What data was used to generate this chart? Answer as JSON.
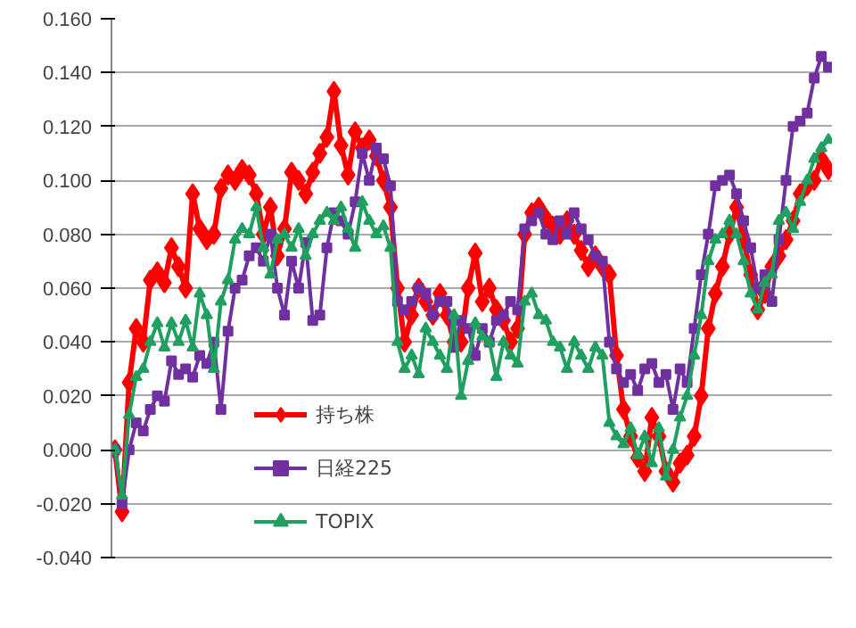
{
  "chart_data": {
    "type": "line",
    "categories": [
      null,
      null,
      null,
      null,
      null,
      null,
      null,
      null,
      null,
      null,
      null,
      null,
      null,
      null,
      null,
      null,
      null,
      null,
      null,
      null,
      null,
      null,
      null,
      null,
      null,
      null,
      null,
      null,
      null,
      null,
      null,
      null,
      null,
      null,
      null,
      null,
      null,
      null,
      null,
      null,
      null,
      null,
      null,
      null,
      null,
      null,
      null,
      null,
      null,
      null,
      null,
      null,
      null,
      null,
      null,
      null,
      null,
      null,
      null,
      null,
      null,
      null,
      null,
      null,
      null,
      null,
      null,
      null,
      null,
      null,
      null,
      null,
      null,
      null,
      null,
      null,
      null,
      null,
      null,
      null,
      null,
      null,
      null,
      null,
      null,
      null,
      null,
      null,
      null,
      null,
      null,
      null,
      null,
      null,
      null,
      null,
      null,
      null,
      null,
      null,
      null,
      null
    ],
    "series": [
      {
        "name": "持ち株",
        "color": "#ff0000",
        "marker": "diamond",
        "values": [
          0.0,
          -0.023,
          0.025,
          0.045,
          0.04,
          0.063,
          0.066,
          0.062,
          0.075,
          0.068,
          0.06,
          0.095,
          0.082,
          0.078,
          0.08,
          0.097,
          0.102,
          0.1,
          0.104,
          0.102,
          0.095,
          0.08,
          0.09,
          0.072,
          0.082,
          0.103,
          0.1,
          0.095,
          0.103,
          0.11,
          0.116,
          0.133,
          0.113,
          0.102,
          0.118,
          0.112,
          0.115,
          0.109,
          0.1,
          0.09,
          0.06,
          0.04,
          0.05,
          0.06,
          0.055,
          0.05,
          0.058,
          0.05,
          0.04,
          0.04,
          0.06,
          0.073,
          0.055,
          0.06,
          0.052,
          0.048,
          0.04,
          0.045,
          0.08,
          0.088,
          0.09,
          0.086,
          0.083,
          0.08,
          0.085,
          0.08,
          0.074,
          0.068,
          0.072,
          0.068,
          0.065,
          0.035,
          0.015,
          0.005,
          -0.003,
          -0.008,
          0.012,
          0.005,
          -0.008,
          -0.012,
          -0.005,
          -0.002,
          0.005,
          0.02,
          0.045,
          0.058,
          0.068,
          0.08,
          0.09,
          0.078,
          0.065,
          0.052,
          0.058,
          0.068,
          0.072,
          0.078,
          0.085,
          0.095,
          0.098,
          0.1,
          0.108,
          0.104
        ]
      },
      {
        "name": "日経225",
        "color": "#7030a0",
        "marker": "square",
        "values": [
          0.0,
          -0.02,
          0.0,
          0.01,
          0.007,
          0.015,
          0.02,
          0.018,
          0.033,
          0.028,
          0.03,
          0.027,
          0.035,
          0.032,
          0.04,
          0.015,
          0.044,
          0.06,
          0.063,
          0.072,
          0.075,
          0.07,
          0.08,
          0.06,
          0.05,
          0.07,
          0.06,
          0.077,
          0.048,
          0.05,
          0.075,
          0.088,
          0.085,
          0.08,
          0.092,
          0.11,
          0.1,
          0.112,
          0.108,
          0.098,
          0.055,
          0.052,
          0.055,
          0.06,
          0.058,
          0.05,
          0.055,
          0.055,
          0.038,
          0.048,
          0.045,
          0.035,
          0.045,
          0.04,
          0.048,
          0.05,
          0.055,
          0.052,
          0.082,
          0.085,
          0.088,
          0.08,
          0.078,
          0.085,
          0.08,
          0.088,
          0.082,
          0.078,
          0.072,
          0.07,
          0.04,
          0.03,
          0.025,
          0.028,
          0.022,
          0.03,
          0.032,
          0.025,
          0.028,
          0.015,
          0.03,
          0.025,
          0.045,
          0.065,
          0.08,
          0.098,
          0.1,
          0.102,
          0.095,
          0.085,
          0.075,
          0.06,
          0.065,
          0.055,
          0.078,
          0.1,
          0.12,
          0.122,
          0.125,
          0.138,
          0.146,
          0.142
        ]
      },
      {
        "name": "TOPIX",
        "color": "#20a060",
        "marker": "triangle",
        "values": [
          0.0,
          -0.017,
          0.013,
          0.027,
          0.03,
          0.04,
          0.047,
          0.038,
          0.047,
          0.04,
          0.048,
          0.038,
          0.058,
          0.05,
          0.03,
          0.055,
          0.063,
          0.078,
          0.082,
          0.08,
          0.09,
          0.075,
          0.065,
          0.078,
          0.08,
          0.075,
          0.082,
          0.072,
          0.08,
          0.085,
          0.088,
          0.085,
          0.09,
          0.082,
          0.075,
          0.092,
          0.085,
          0.08,
          0.083,
          0.075,
          0.04,
          0.03,
          0.035,
          0.028,
          0.045,
          0.04,
          0.035,
          0.03,
          0.05,
          0.02,
          0.033,
          0.047,
          0.042,
          0.04,
          0.027,
          0.04,
          0.035,
          0.032,
          0.055,
          0.058,
          0.05,
          0.048,
          0.04,
          0.038,
          0.03,
          0.04,
          0.035,
          0.03,
          0.038,
          0.035,
          0.01,
          0.005,
          0.002,
          0.008,
          -0.002,
          0.005,
          -0.005,
          0.008,
          -0.01,
          0.0,
          0.012,
          0.02,
          0.035,
          0.05,
          0.07,
          0.078,
          0.08,
          0.085,
          0.08,
          0.07,
          0.058,
          0.052,
          0.062,
          0.065,
          0.085,
          0.088,
          0.082,
          0.092,
          0.1,
          0.108,
          0.112,
          0.115
        ]
      }
    ],
    "ylim": [
      -0.04,
      0.16
    ],
    "yticks": [
      {
        "value": -0.04,
        "label": "-0.040"
      },
      {
        "value": -0.02,
        "label": "-0.020"
      },
      {
        "value": 0,
        "label": "0.000"
      },
      {
        "value": 0.02,
        "label": "0.020"
      },
      {
        "value": 0.04,
        "label": "0.040"
      },
      {
        "value": 0.06,
        "label": "0.060"
      },
      {
        "value": 0.08,
        "label": "0.080"
      },
      {
        "value": 0.1,
        "label": "0.100"
      },
      {
        "value": 0.12,
        "label": "0.120"
      },
      {
        "value": 0.14,
        "label": "0.140"
      },
      {
        "value": 0.16,
        "label": "0.160"
      }
    ],
    "grid": "y",
    "legend": "bottom left",
    "tick_labels": "y",
    "line_style": "solid"
  }
}
